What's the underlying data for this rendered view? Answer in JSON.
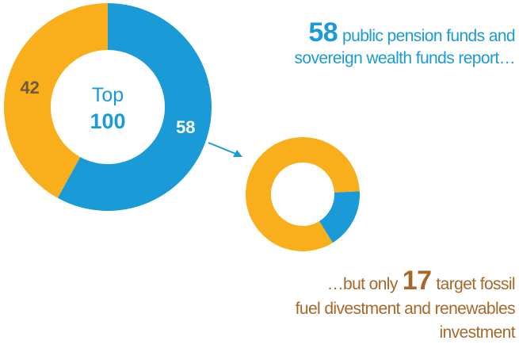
{
  "chart_data": [
    {
      "type": "donut",
      "center_label": [
        "Top",
        "100"
      ],
      "values": [
        58,
        42
      ],
      "colors": [
        "#1a9bd7",
        "#f9ae1c"
      ],
      "label_colors": [
        "#ffffff",
        "#6e5b3b"
      ],
      "show_labels": true
    },
    {
      "type": "donut",
      "values": [
        17,
        83
      ],
      "colors": [
        "#1a9bd7",
        "#f9ae1c"
      ],
      "show_labels": false
    }
  ],
  "headline": {
    "line1": "public pension funds and",
    "line2": "sovereign wealth funds report…"
  },
  "footnote": {
    "pre": "…but only",
    "post": "target fossil",
    "line2": "fuel divestment and renewables",
    "line3": "investment"
  }
}
